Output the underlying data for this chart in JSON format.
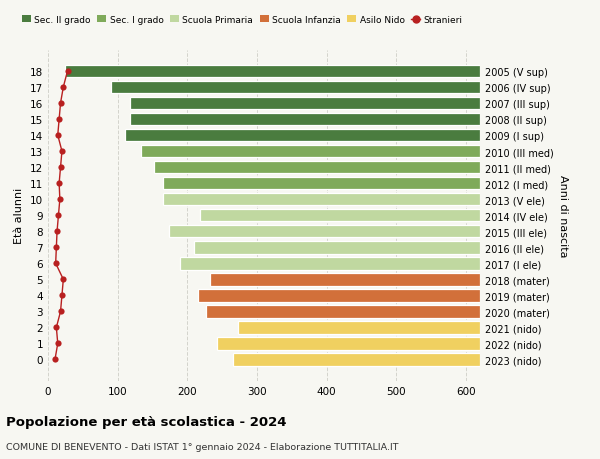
{
  "ages": [
    18,
    17,
    16,
    15,
    14,
    13,
    12,
    11,
    10,
    9,
    8,
    7,
    6,
    5,
    4,
    3,
    2,
    1,
    0
  ],
  "years": [
    "2005 (V sup)",
    "2006 (IV sup)",
    "2007 (III sup)",
    "2008 (II sup)",
    "2009 (I sup)",
    "2010 (III med)",
    "2011 (II med)",
    "2012 (I med)",
    "2013 (V ele)",
    "2014 (IV ele)",
    "2015 (III ele)",
    "2016 (II ele)",
    "2017 (I ele)",
    "2018 (mater)",
    "2019 (mater)",
    "2020 (mater)",
    "2021 (nido)",
    "2022 (nido)",
    "2023 (nido)"
  ],
  "values": [
    596,
    530,
    503,
    503,
    510,
    487,
    468,
    455,
    455,
    402,
    447,
    410,
    430,
    388,
    405,
    393,
    348,
    378,
    355
  ],
  "stranieri": [
    28,
    22,
    18,
    16,
    14,
    20,
    18,
    16,
    17,
    15,
    13,
    12,
    11,
    22,
    20,
    18,
    12,
    14,
    10
  ],
  "colors": {
    "sec2": "#4a7c3f",
    "sec1": "#7faa5a",
    "primaria": "#c0d8a0",
    "infanzia": "#d2703a",
    "nido": "#f0d060"
  },
  "bar_colors_by_age": {
    "18": "#4a7c3f",
    "17": "#4a7c3f",
    "16": "#4a7c3f",
    "15": "#4a7c3f",
    "14": "#4a7c3f",
    "13": "#7faa5a",
    "12": "#7faa5a",
    "11": "#7faa5a",
    "10": "#c0d8a0",
    "9": "#c0d8a0",
    "8": "#c0d8a0",
    "7": "#c0d8a0",
    "6": "#c0d8a0",
    "5": "#d2703a",
    "4": "#d2703a",
    "3": "#d2703a",
    "2": "#f0d060",
    "1": "#f0d060",
    "0": "#f0d060"
  },
  "title": "Popolazione per età scolastica - 2024",
  "subtitle": "COMUNE DI BENEVENTO - Dati ISTAT 1° gennaio 2024 - Elaborazione TUTTITALIA.IT",
  "ylabel_left": "Età alunni",
  "ylabel_right": "Anni di nascita",
  "xlim": [
    0,
    620
  ],
  "xticks": [
    0,
    100,
    200,
    300,
    400,
    500,
    600
  ],
  "background_color": "#f7f7f2",
  "grid_color": "#d0d0c8",
  "stranieri_color": "#b82020",
  "bar_height": 0.78
}
